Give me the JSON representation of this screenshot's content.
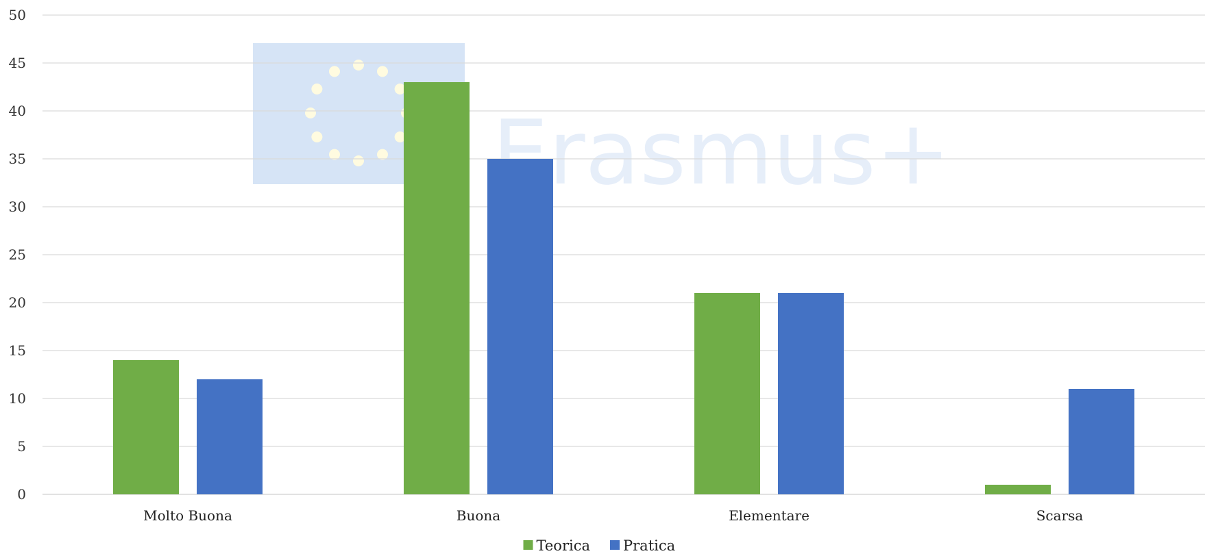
{
  "watermark": {
    "text": "Erasmus+",
    "panel_color": "#d6e4f6",
    "star_color": "#fffbe0"
  },
  "chart_data": {
    "type": "bar",
    "categories": [
      "Molto Buona",
      "Buona",
      "Elementare",
      "Scarsa"
    ],
    "series": [
      {
        "name": "Teorica",
        "values": [
          14,
          43,
          21,
          1
        ],
        "color": "#70ad47"
      },
      {
        "name": "Pratica",
        "values": [
          12,
          35,
          21,
          11
        ],
        "color": "#4472c4"
      }
    ],
    "ylim": [
      0,
      50
    ],
    "yticks": [
      0,
      5,
      10,
      15,
      20,
      25,
      30,
      35,
      40,
      45,
      50
    ],
    "grid": true,
    "gridColor": "#d9d9d9",
    "legend": "bottom"
  }
}
